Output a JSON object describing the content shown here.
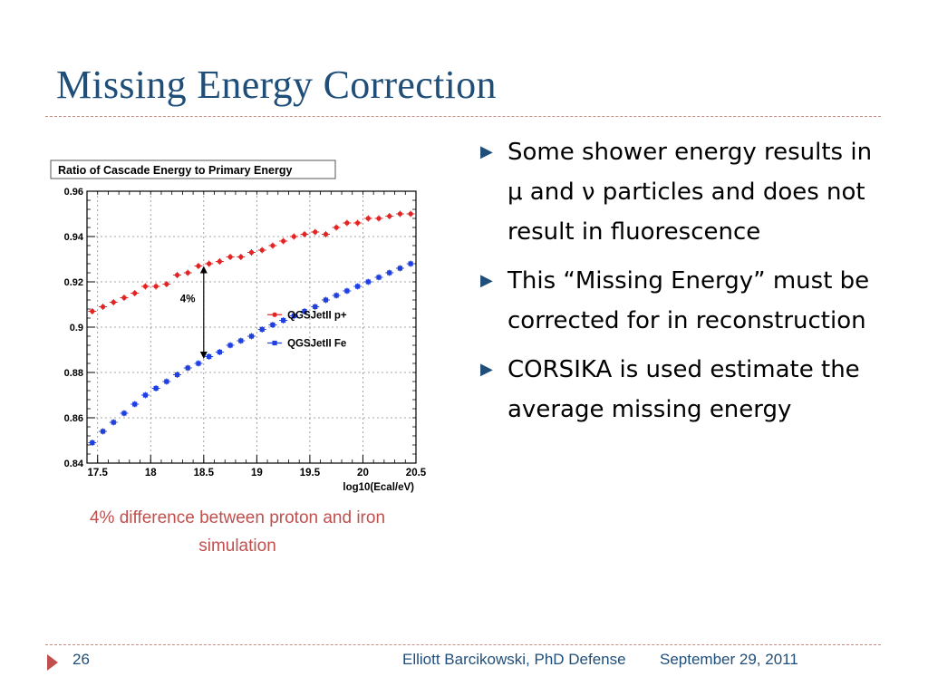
{
  "slide": {
    "title": "Missing Energy Correction",
    "caption": "4% difference between proton and iron simulation",
    "bullets": [
      "Some shower energy results in μ and ν particles and does not result in fluorescence",
      "This “Missing Energy” must be corrected for in reconstruction",
      "CORSIKA is used estimate the average missing energy"
    ],
    "footer": {
      "slide_number": "26",
      "author": "Elliott Barcikowski, PhD Defense",
      "date": "September 29, 2011"
    }
  },
  "colors": {
    "title": "#1f4e79",
    "caption": "#c0504d",
    "proton": "#e32424",
    "iron": "#1f3fe0"
  },
  "chart_data": {
    "type": "scatter",
    "title": "Ratio of Cascade Energy to Primary Energy",
    "xlabel": "log10(Ecal/eV)",
    "ylabel": "",
    "xlim": [
      17.4,
      20.5
    ],
    "ylim": [
      0.84,
      0.96
    ],
    "xticks": [
      "17.5",
      "18",
      "18.5",
      "19",
      "19.5",
      "20",
      "20.5"
    ],
    "yticks": [
      "0.84",
      "0.86",
      "0.88",
      "0.9",
      "0.92",
      "0.94",
      "0.96"
    ],
    "grid": true,
    "legend_position": "center-right",
    "annotation": "4%",
    "series": [
      {
        "name": "QGSJetII p+",
        "x": [
          17.45,
          17.55,
          17.65,
          17.75,
          17.85,
          17.95,
          18.05,
          18.15,
          18.25,
          18.35,
          18.45,
          18.55,
          18.65,
          18.75,
          18.85,
          18.95,
          19.05,
          19.15,
          19.25,
          19.35,
          19.45,
          19.55,
          19.65,
          19.75,
          19.85,
          19.95,
          20.05,
          20.15,
          20.25,
          20.35,
          20.45
        ],
        "values": [
          0.907,
          0.909,
          0.911,
          0.913,
          0.915,
          0.918,
          0.918,
          0.919,
          0.923,
          0.924,
          0.927,
          0.928,
          0.929,
          0.931,
          0.931,
          0.933,
          0.934,
          0.936,
          0.938,
          0.94,
          0.941,
          0.942,
          0.941,
          0.944,
          0.946,
          0.946,
          0.948,
          0.948,
          0.949,
          0.95,
          0.95
        ]
      },
      {
        "name": "QGSJetII Fe",
        "x": [
          17.45,
          17.55,
          17.65,
          17.75,
          17.85,
          17.95,
          18.05,
          18.15,
          18.25,
          18.35,
          18.45,
          18.55,
          18.65,
          18.75,
          18.85,
          18.95,
          19.05,
          19.15,
          19.25,
          19.35,
          19.45,
          19.55,
          19.65,
          19.75,
          19.85,
          19.95,
          20.05,
          20.15,
          20.25,
          20.35,
          20.45
        ],
        "values": [
          0.849,
          0.854,
          0.858,
          0.862,
          0.866,
          0.87,
          0.873,
          0.876,
          0.879,
          0.882,
          0.884,
          0.887,
          0.889,
          0.892,
          0.894,
          0.896,
          0.899,
          0.901,
          0.903,
          0.905,
          0.907,
          0.909,
          0.912,
          0.914,
          0.916,
          0.918,
          0.92,
          0.922,
          0.924,
          0.926,
          0.928
        ]
      }
    ]
  }
}
